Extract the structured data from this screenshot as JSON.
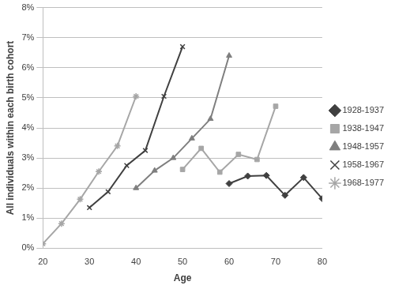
{
  "chart_data": {
    "type": "line",
    "x_label": "Age",
    "y_label": "All individuals within each birth cohort",
    "xlim": [
      20,
      80
    ],
    "xticks": [
      20,
      30,
      40,
      50,
      60,
      70,
      80
    ],
    "ylim": [
      0,
      8
    ],
    "yticks": [
      {
        "value": 0,
        "label": "0%"
      },
      {
        "value": 1,
        "label": "1%"
      },
      {
        "value": 2,
        "label": "2%"
      },
      {
        "value": 3,
        "label": "3%"
      },
      {
        "value": 4,
        "label": "4%"
      },
      {
        "value": 5,
        "label": "5%"
      },
      {
        "value": 6,
        "label": "6%"
      },
      {
        "value": 7,
        "label": "7%"
      },
      {
        "value": 8,
        "label": "8%"
      }
    ],
    "grid": "y",
    "legend": "right",
    "series": [
      {
        "name": "1928-1937",
        "color": "#404040",
        "marker": "diamond",
        "x": [
          60,
          64,
          68,
          72,
          76,
          80
        ],
        "values": [
          2.15,
          2.4,
          2.42,
          1.76,
          2.35,
          1.65
        ]
      },
      {
        "name": "1938-1947",
        "color": "#a6a6a6",
        "marker": "square",
        "x": [
          50,
          54,
          58,
          62,
          66,
          70
        ],
        "values": [
          2.62,
          3.32,
          2.53,
          3.12,
          2.95,
          4.72
        ]
      },
      {
        "name": "1948-1957",
        "color": "#7f7f7f",
        "marker": "triangle",
        "x": [
          40,
          44,
          48,
          52,
          56,
          60
        ],
        "values": [
          2.0,
          2.58,
          3.0,
          3.65,
          4.3,
          6.4
        ]
      },
      {
        "name": "1958-1967",
        "color": "#404040",
        "marker": "x",
        "x": [
          30,
          34,
          38,
          42,
          46,
          50
        ],
        "values": [
          1.35,
          1.88,
          2.75,
          3.25,
          5.05,
          6.7
        ]
      },
      {
        "name": "1968-1977",
        "color": "#a6a6a6",
        "marker": "star",
        "x": [
          20,
          24,
          28,
          32,
          36,
          40
        ],
        "values": [
          0.15,
          0.82,
          1.63,
          2.55,
          3.4,
          5.05
        ]
      }
    ]
  }
}
